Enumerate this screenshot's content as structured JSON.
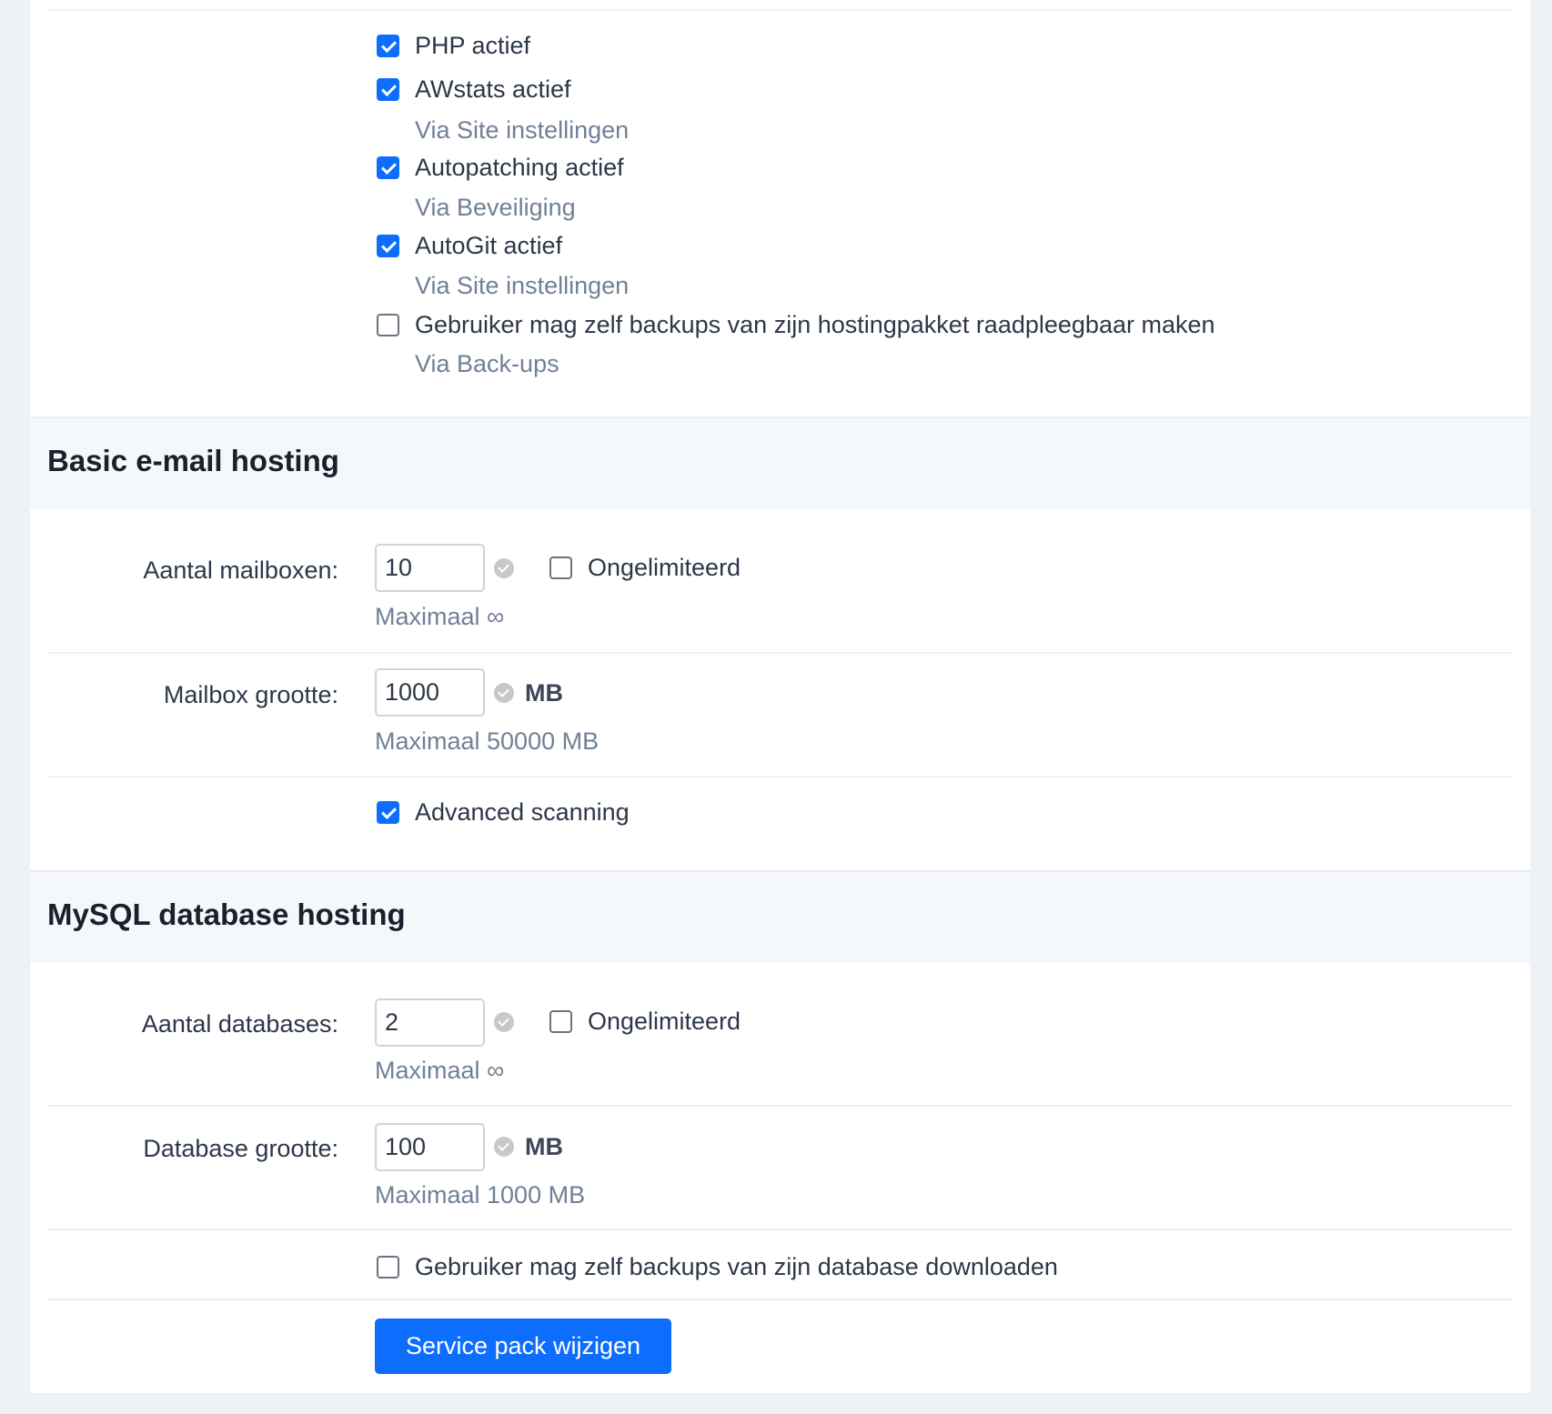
{
  "hosting_options": [
    {
      "label": "PHP actief",
      "checked": true
    },
    {
      "label": "AWstats actief",
      "checked": true,
      "hint": "Via Site instellingen"
    },
    {
      "label": "Autopatching actief",
      "checked": true,
      "hint": "Via Beveiliging"
    },
    {
      "label": "AutoGit actief",
      "checked": true,
      "hint": "Via Site instellingen"
    },
    {
      "label": "Gebruiker mag zelf backups van zijn hostingpakket raadpleegbaar maken",
      "checked": false,
      "hint": "Via Back-ups"
    }
  ],
  "email": {
    "title": "Basic e-mail hosting",
    "mailboxes": {
      "label": "Aantal mailboxen:",
      "value": "10",
      "unlimited_label": "Ongelimiteerd",
      "unlimited": false,
      "max": "Maximaal ∞"
    },
    "size": {
      "label": "Mailbox grootte:",
      "value": "1000",
      "unit": "MB",
      "max": "Maximaal 50000 MB"
    },
    "scanning": {
      "label": "Advanced scanning",
      "checked": true
    }
  },
  "mysql": {
    "title": "MySQL database hosting",
    "databases": {
      "label": "Aantal databases:",
      "value": "2",
      "unlimited_label": "Ongelimiteerd",
      "unlimited": false,
      "max": "Maximaal ∞"
    },
    "size": {
      "label": "Database grootte:",
      "value": "100",
      "unit": "MB",
      "max": "Maximaal 1000 MB"
    },
    "backups": {
      "label": "Gebruiker mag zelf backups van zijn database downloaden",
      "checked": false
    }
  },
  "submit_label": "Service pack wijzigen",
  "colors": {
    "accent": "#0d6efd",
    "hint": "#718096"
  }
}
